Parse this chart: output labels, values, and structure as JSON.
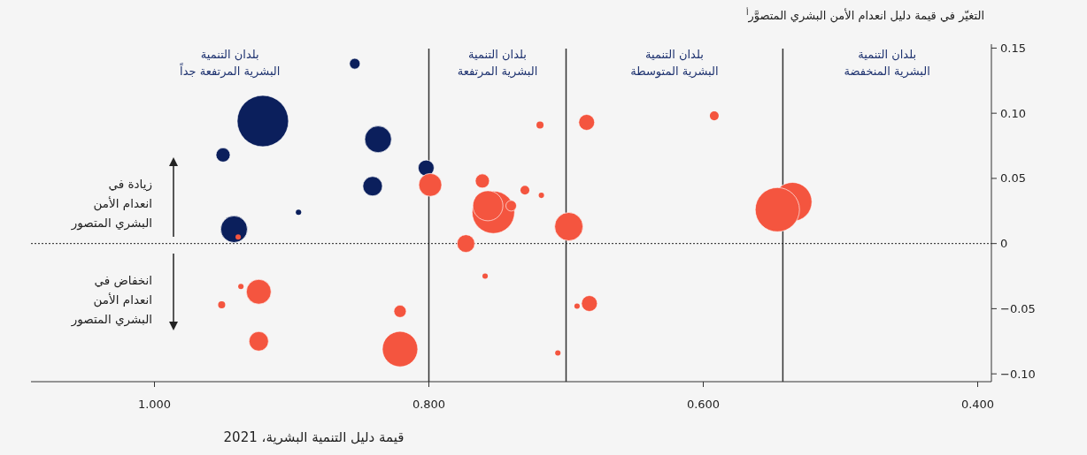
{
  "chart_data": {
    "type": "bubble",
    "ylabel": "التغيّر في قيمة دليل انعدام الأمن البشري المتصوَّر$^{أ}$",
    "xlabel": "قيمة دليل التنمية البشرية، 2021",
    "xlim": [
      1.09,
      0.39
    ],
    "xticks": [
      {
        "value": 1.0,
        "label": "1.000"
      },
      {
        "value": 0.8,
        "label": "0.800"
      },
      {
        "value": 0.6,
        "label": "0.600"
      },
      {
        "value": 0.4,
        "label": "0.400"
      }
    ],
    "ylim": [
      -0.106,
      0.153
    ],
    "yticks": [
      {
        "value": 0.15,
        "label": "0.15"
      },
      {
        "value": 0.1,
        "label": "0.10"
      },
      0.05,
      0,
      {
        "value": -0.05,
        "label": "−0.05"
      },
      {
        "value": -0.1,
        "label": "−0.10"
      }
    ],
    "series": [
      {
        "color": "#0b1f5c",
        "x": [
          0.854,
          0.921,
          0.837,
          0.95,
          0.802,
          0.841,
          0.942,
          0.895
        ],
        "values": [
          0.138,
          0.094,
          0.08,
          0.068,
          0.058,
          0.044,
          0.011,
          0.024
        ],
        "sizes": [
          0.043,
          1,
          0.27,
          0.076,
          0.096,
          0.144,
          0.27,
          0.011
        ]
      },
      {
        "color": "#f4553f",
        "x": [
          0.924,
          0.937,
          0.951,
          0.924,
          0.821,
          0.821,
          0.799,
          0.719,
          0.685,
          0.592,
          0.761,
          0.73,
          0.718,
          0.753,
          0.757,
          0.74,
          0.698,
          0.773,
          0.759,
          0.683,
          0.692,
          0.706,
          0.535,
          0.546,
          0.939
        ],
        "values": [
          -0.037,
          -0.033,
          -0.047,
          -0.075,
          -0.052,
          -0.081,
          0.045,
          0.091,
          0.093,
          0.098,
          0.048,
          0.041,
          0.037,
          0.024,
          0.029,
          0.029,
          0.013,
          0.0,
          -0.025,
          -0.046,
          -0.048,
          -0.084,
          0.032,
          0.026,
          0.005
        ],
        "sizes": [
          0.233,
          0.011,
          0.019,
          0.144,
          0.058,
          0.476,
          0.2,
          0.019,
          0.096,
          0.03,
          0.076,
          0.03,
          0.011,
          0.685,
          0.344,
          0.043,
          0.304,
          0.119,
          0.011,
          0.096,
          0.011,
          0.011,
          0.575,
          0.743,
          0.011
        ]
      }
    ],
    "ref_lines": [
      {
        "axis": "x",
        "value": 0.8,
        "color": "#333333",
        "line_style": "solid"
      },
      {
        "axis": "x",
        "value": 0.7,
        "color": "#333333",
        "line_style": "solid"
      },
      {
        "axis": "x",
        "value": 0.542,
        "color": "#333333",
        "line_style": "solid"
      },
      {
        "axis": "y",
        "value": 0,
        "color": "#222222",
        "line_style": "dotted"
      }
    ],
    "annotations": [
      "بلدان التنمية\nالبشرية المرتفعة جداً",
      "بلدان التنمية\nالبشرية المرتفعة",
      "بلدان التنمية\nالبشرية المتوسطة",
      "بلدان التنمية\nالبشرية المنخفضة",
      "زيادة في\nانعدام الأمن\nالبشري المتصور",
      "انخفاض في\nانعدام الأمن\nالبشري المتصور"
    ]
  }
}
